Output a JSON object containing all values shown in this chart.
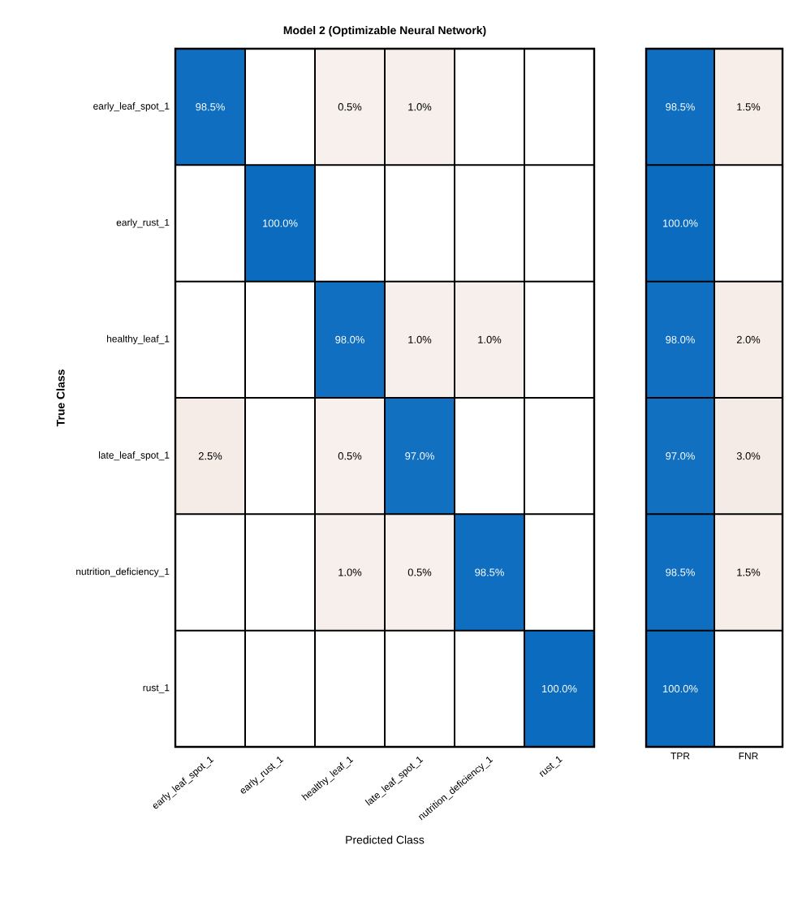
{
  "chart_data": [
    {
      "type": "heatmap",
      "title": "Model 2 (Optimizable Neural Network)",
      "xlabel": "Predicted Class",
      "ylabel": "True Class",
      "categories": [
        "early_leaf_spot_1",
        "early_rust_1",
        "healthy_leaf_1",
        "late_leaf_spot_1",
        "nutrition_deficiency_1",
        "rust_1"
      ],
      "y_categories": [
        "early_leaf_spot_1",
        "early_rust_1",
        "healthy_leaf_1",
        "late_leaf_spot_1",
        "nutrition_deficiency_1",
        "rust_1"
      ],
      "cells": [
        [
          98.5,
          null,
          0.5,
          1.0,
          null,
          null
        ],
        [
          null,
          100.0,
          null,
          null,
          null,
          null
        ],
        [
          null,
          null,
          98.0,
          1.0,
          1.0,
          null
        ],
        [
          2.5,
          null,
          0.5,
          97.0,
          null,
          null
        ],
        [
          null,
          null,
          1.0,
          0.5,
          98.5,
          null
        ],
        [
          null,
          null,
          null,
          null,
          null,
          100.0
        ]
      ],
      "cell_labels": [
        [
          "98.5%",
          null,
          "0.5%",
          "1.0%",
          null,
          null
        ],
        [
          null,
          "100.0%",
          null,
          null,
          null,
          null
        ],
        [
          null,
          null,
          "98.0%",
          "1.0%",
          "1.0%",
          null
        ],
        [
          "2.5%",
          null,
          "0.5%",
          "97.0%",
          null,
          null
        ],
        [
          null,
          null,
          "1.0%",
          "0.5%",
          "98.5%",
          null
        ],
        [
          null,
          null,
          null,
          null,
          null,
          "100.0%"
        ]
      ]
    },
    {
      "type": "heatmap",
      "categories": [
        "TPR",
        "FNR"
      ],
      "y_categories": [
        null,
        null,
        null,
        null,
        null,
        null
      ],
      "tick_labels": "x",
      "cells": [
        [
          98.5,
          1.5
        ],
        [
          100.0,
          null
        ],
        [
          98.0,
          2.0
        ],
        [
          97.0,
          3.0
        ],
        [
          98.5,
          1.5
        ],
        [
          100.0,
          null
        ]
      ],
      "cell_labels": [
        [
          "98.5%",
          "1.5%"
        ],
        [
          "100.0%",
          null
        ],
        [
          "98.0%",
          "2.0%"
        ],
        [
          "97.0%",
          "3.0%"
        ],
        [
          "98.5%",
          "1.5%"
        ],
        [
          "100.0%",
          null
        ]
      ]
    }
  ]
}
